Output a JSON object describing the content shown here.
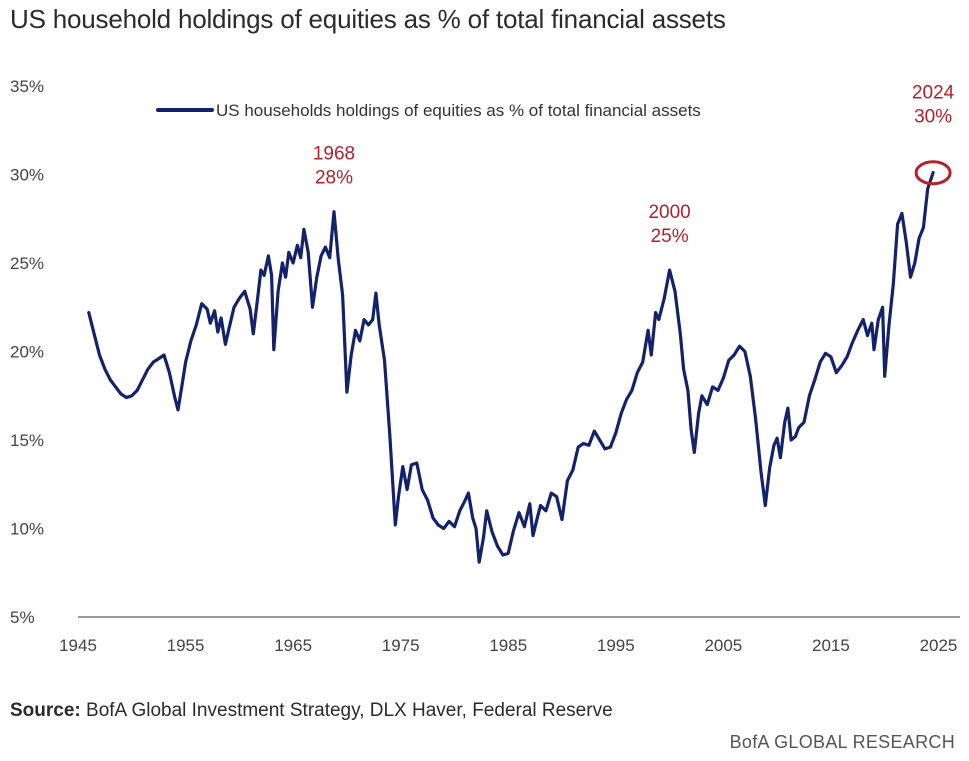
{
  "title": "US household holdings of equities as % of total financial assets",
  "source_label": "Source:",
  "source_text": " BofA Global Investment Strategy, DLX Haver, Federal Reserve",
  "brand": "BofA GLOBAL RESEARCH",
  "colors": {
    "line": "#14226b",
    "annotation": "#b0222b",
    "axis": "#999999"
  },
  "chart_data": {
    "type": "line",
    "title": "US household holdings of equities as % of total financial assets",
    "xlim": [
      1945,
      2027
    ],
    "ylim": [
      5,
      35
    ],
    "x_ticks": [
      {
        "value": 1945,
        "label": "1945"
      },
      {
        "value": 1955,
        "label": "1955"
      },
      {
        "value": 1965,
        "label": "1965"
      },
      {
        "value": 1975,
        "label": "1975"
      },
      {
        "value": 1985,
        "label": "1985"
      },
      {
        "value": 1995,
        "label": "1995"
      },
      {
        "value": 2005,
        "label": "2005"
      },
      {
        "value": 2015,
        "label": "2015"
      },
      {
        "value": 2025,
        "label": "2025"
      }
    ],
    "y_ticks": [
      {
        "value": 5,
        "label": "5%"
      },
      {
        "value": 10,
        "label": "10%"
      },
      {
        "value": 15,
        "label": "15%"
      },
      {
        "value": 20,
        "label": "20%"
      },
      {
        "value": 25,
        "label": "25%"
      },
      {
        "value": 30,
        "label": "30%"
      },
      {
        "value": 35,
        "label": "35%"
      }
    ],
    "grid": false,
    "legend_position": "top",
    "series": [
      {
        "name": "US households holdings of equities as % of total financial assets",
        "points": [
          [
            1946.0,
            22.2
          ],
          [
            1946.5,
            21.0
          ],
          [
            1947.0,
            19.8
          ],
          [
            1947.5,
            19.0
          ],
          [
            1948.0,
            18.4
          ],
          [
            1948.5,
            18.0
          ],
          [
            1949.0,
            17.6
          ],
          [
            1949.5,
            17.4
          ],
          [
            1950.0,
            17.5
          ],
          [
            1950.5,
            17.8
          ],
          [
            1951.0,
            18.4
          ],
          [
            1951.5,
            19.0
          ],
          [
            1952.0,
            19.4
          ],
          [
            1952.5,
            19.6
          ],
          [
            1953.0,
            19.8
          ],
          [
            1953.5,
            18.8
          ],
          [
            1954.0,
            17.4
          ],
          [
            1954.3,
            16.7
          ],
          [
            1954.7,
            18.2
          ],
          [
            1955.0,
            19.4
          ],
          [
            1955.5,
            20.6
          ],
          [
            1956.0,
            21.5
          ],
          [
            1956.5,
            22.7
          ],
          [
            1957.0,
            22.4
          ],
          [
            1957.3,
            21.6
          ],
          [
            1957.7,
            22.3
          ],
          [
            1958.0,
            21.1
          ],
          [
            1958.3,
            21.9
          ],
          [
            1958.7,
            20.4
          ],
          [
            1959.0,
            21.2
          ],
          [
            1959.5,
            22.5
          ],
          [
            1960.0,
            23.0
          ],
          [
            1960.5,
            23.4
          ],
          [
            1961.0,
            22.4
          ],
          [
            1961.3,
            21.0
          ],
          [
            1961.7,
            23.0
          ],
          [
            1962.0,
            24.6
          ],
          [
            1962.3,
            24.3
          ],
          [
            1962.7,
            25.4
          ],
          [
            1963.0,
            24.3
          ],
          [
            1963.2,
            20.1
          ],
          [
            1963.6,
            23.4
          ],
          [
            1964.0,
            25.0
          ],
          [
            1964.3,
            24.2
          ],
          [
            1964.6,
            25.6
          ],
          [
            1965.0,
            25.0
          ],
          [
            1965.4,
            26.0
          ],
          [
            1965.7,
            25.3
          ],
          [
            1966.0,
            26.9
          ],
          [
            1966.4,
            25.6
          ],
          [
            1966.8,
            22.5
          ],
          [
            1967.2,
            24.2
          ],
          [
            1967.6,
            25.4
          ],
          [
            1968.0,
            25.9
          ],
          [
            1968.4,
            25.3
          ],
          [
            1968.8,
            27.9
          ],
          [
            1969.2,
            25.2
          ],
          [
            1969.6,
            23.2
          ],
          [
            1970.0,
            17.7
          ],
          [
            1970.4,
            19.8
          ],
          [
            1970.8,
            21.2
          ],
          [
            1971.2,
            20.6
          ],
          [
            1971.6,
            21.8
          ],
          [
            1972.0,
            21.5
          ],
          [
            1972.4,
            21.8
          ],
          [
            1972.7,
            23.3
          ],
          [
            1973.0,
            21.5
          ],
          [
            1973.5,
            19.5
          ],
          [
            1974.0,
            15.2
          ],
          [
            1974.5,
            10.2
          ],
          [
            1974.8,
            11.8
          ],
          [
            1975.2,
            13.5
          ],
          [
            1975.6,
            12.2
          ],
          [
            1976.0,
            13.6
          ],
          [
            1976.5,
            13.7
          ],
          [
            1977.0,
            12.2
          ],
          [
            1977.5,
            11.6
          ],
          [
            1978.0,
            10.6
          ],
          [
            1978.5,
            10.2
          ],
          [
            1979.0,
            10.0
          ],
          [
            1979.5,
            10.4
          ],
          [
            1980.0,
            10.1
          ],
          [
            1980.5,
            11.0
          ],
          [
            1981.0,
            11.6
          ],
          [
            1981.3,
            12.0
          ],
          [
            1981.7,
            10.6
          ],
          [
            1982.0,
            10.0
          ],
          [
            1982.3,
            8.1
          ],
          [
            1982.7,
            9.5
          ],
          [
            1983.0,
            11.0
          ],
          [
            1983.5,
            9.8
          ],
          [
            1984.0,
            9.0
          ],
          [
            1984.5,
            8.5
          ],
          [
            1985.0,
            8.6
          ],
          [
            1985.5,
            9.9
          ],
          [
            1986.0,
            10.9
          ],
          [
            1986.5,
            10.1
          ],
          [
            1987.0,
            11.4
          ],
          [
            1987.3,
            9.6
          ],
          [
            1987.7,
            10.6
          ],
          [
            1988.0,
            11.3
          ],
          [
            1988.5,
            11.0
          ],
          [
            1989.0,
            12.0
          ],
          [
            1989.5,
            11.8
          ],
          [
            1990.0,
            10.5
          ],
          [
            1990.5,
            12.7
          ],
          [
            1991.0,
            13.3
          ],
          [
            1991.5,
            14.6
          ],
          [
            1992.0,
            14.8
          ],
          [
            1992.5,
            14.7
          ],
          [
            1993.0,
            15.5
          ],
          [
            1993.5,
            15.0
          ],
          [
            1994.0,
            14.5
          ],
          [
            1994.5,
            14.6
          ],
          [
            1995.0,
            15.4
          ],
          [
            1995.5,
            16.5
          ],
          [
            1996.0,
            17.3
          ],
          [
            1996.5,
            17.8
          ],
          [
            1997.0,
            18.8
          ],
          [
            1997.5,
            19.4
          ],
          [
            1998.0,
            21.2
          ],
          [
            1998.3,
            19.8
          ],
          [
            1998.7,
            22.2
          ],
          [
            1999.0,
            21.8
          ],
          [
            1999.5,
            23.0
          ],
          [
            2000.0,
            24.6
          ],
          [
            2000.5,
            23.4
          ],
          [
            2001.0,
            21.0
          ],
          [
            2001.3,
            19.0
          ],
          [
            2001.7,
            17.8
          ],
          [
            2002.0,
            15.6
          ],
          [
            2002.3,
            14.3
          ],
          [
            2002.7,
            16.5
          ],
          [
            2003.0,
            17.5
          ],
          [
            2003.5,
            17.0
          ],
          [
            2004.0,
            18.0
          ],
          [
            2004.5,
            17.8
          ],
          [
            2005.0,
            18.5
          ],
          [
            2005.5,
            19.5
          ],
          [
            2006.0,
            19.8
          ],
          [
            2006.5,
            20.3
          ],
          [
            2007.0,
            20.0
          ],
          [
            2007.5,
            18.6
          ],
          [
            2008.0,
            16.2
          ],
          [
            2008.5,
            13.2
          ],
          [
            2008.9,
            11.3
          ],
          [
            2009.3,
            13.4
          ],
          [
            2009.7,
            14.7
          ],
          [
            2010.0,
            15.1
          ],
          [
            2010.3,
            14.0
          ],
          [
            2010.7,
            16.0
          ],
          [
            2011.0,
            16.8
          ],
          [
            2011.3,
            15.0
          ],
          [
            2011.7,
            15.2
          ],
          [
            2012.0,
            15.7
          ],
          [
            2012.5,
            16.0
          ],
          [
            2013.0,
            17.5
          ],
          [
            2013.5,
            18.4
          ],
          [
            2014.0,
            19.4
          ],
          [
            2014.5,
            19.9
          ],
          [
            2015.0,
            19.7
          ],
          [
            2015.5,
            18.8
          ],
          [
            2016.0,
            19.2
          ],
          [
            2016.5,
            19.7
          ],
          [
            2017.0,
            20.5
          ],
          [
            2017.5,
            21.2
          ],
          [
            2018.0,
            21.8
          ],
          [
            2018.4,
            20.9
          ],
          [
            2018.8,
            21.6
          ],
          [
            2019.0,
            20.1
          ],
          [
            2019.4,
            21.8
          ],
          [
            2019.8,
            22.5
          ],
          [
            2020.0,
            18.6
          ],
          [
            2020.4,
            21.5
          ],
          [
            2020.8,
            23.8
          ],
          [
            2021.2,
            27.2
          ],
          [
            2021.6,
            27.8
          ],
          [
            2022.0,
            26.2
          ],
          [
            2022.4,
            24.2
          ],
          [
            2022.8,
            25.0
          ],
          [
            2023.2,
            26.4
          ],
          [
            2023.6,
            27.0
          ],
          [
            2024.0,
            29.2
          ],
          [
            2024.5,
            30.1
          ]
        ]
      }
    ],
    "annotations": [
      {
        "year_label": "1968",
        "value_label": "28%",
        "x": 1968.8,
        "y": 27.9
      },
      {
        "year_label": "2000",
        "value_label": "25%",
        "x": 2000.0,
        "y": 24.6
      },
      {
        "year_label": "2024",
        "value_label": "30%",
        "x": 2024.5,
        "y": 30.1,
        "circled": true
      }
    ]
  }
}
